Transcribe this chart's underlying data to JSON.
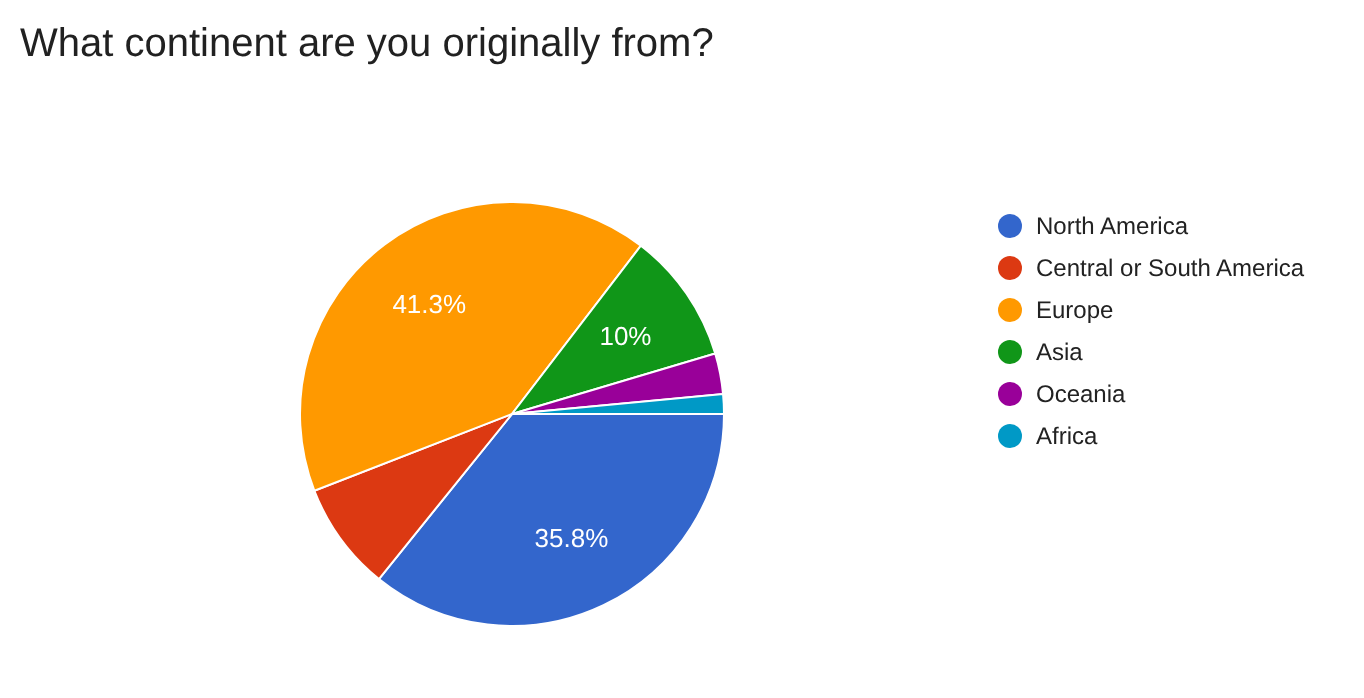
{
  "chart_data": {
    "type": "pie",
    "title": "What continent are you originally from?",
    "categories": [
      "North America",
      "Central or South America",
      "Europe",
      "Asia",
      "Oceania",
      "Africa"
    ],
    "values": [
      35.8,
      8.3,
      41.3,
      10,
      3.1,
      1.5
    ],
    "colors": [
      "#3366cc",
      "#dc3912",
      "#ff9900",
      "#109618",
      "#990099",
      "#0099c6"
    ],
    "value_labels": [
      "35.8%",
      null,
      "41.3%",
      "10%",
      null,
      null
    ],
    "legend": "right"
  }
}
